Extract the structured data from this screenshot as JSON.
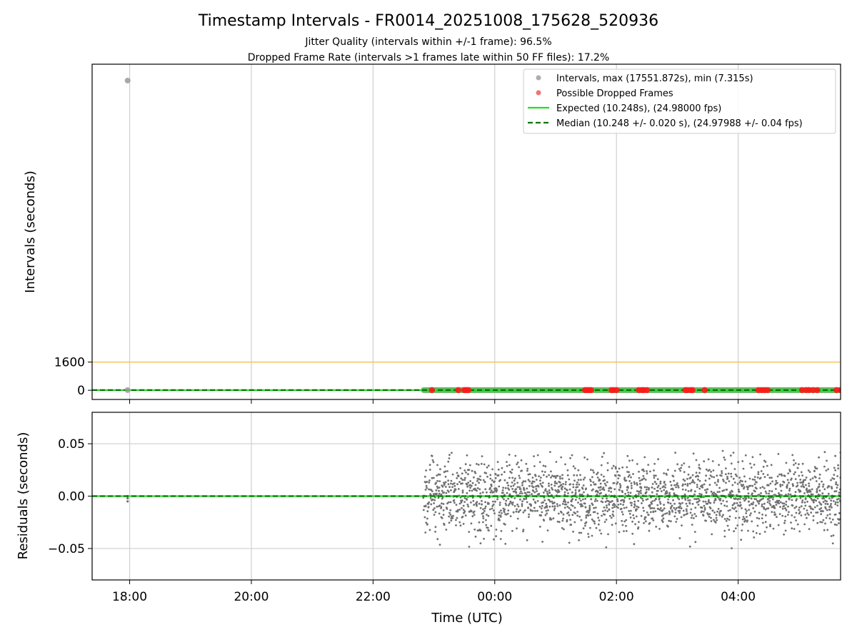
{
  "chart_data": [
    {
      "type": "scatter",
      "panel": "intervals",
      "title": "Timestamp Intervals - FR0014_20251008_175628_520936",
      "subtitle_lines": [
        "Jitter Quality (intervals within +/-1 frame): 96.5%",
        "Dropped Frame Rate (intervals >1 frames late within 50 FF files): 17.2%"
      ],
      "ylabel": "Intervals (seconds)",
      "yticks": [
        0,
        1600
      ],
      "ytick_labels": [
        "0",
        "1600"
      ],
      "ylim": [
        -520,
        18480
      ],
      "x_is_time": true,
      "xlim": [
        "17:23",
        "05:41"
      ],
      "xticks": [
        "18:00",
        "20:00",
        "22:00",
        "00:00",
        "02:00",
        "04:00"
      ],
      "threshold_line": {
        "value": 1600,
        "color": "#f5c242"
      },
      "expected_value": 10.248,
      "median_value": 10.248,
      "outlier_points": [
        {
          "time": "17:58",
          "value": 17551.872
        },
        {
          "time": "17:58",
          "value": 10.2
        }
      ],
      "continuous_segment": {
        "start": "22:50",
        "end": "05:41",
        "value": 10.25
      },
      "dropped_frame_times": [
        "22:58",
        "23:24",
        "23:30",
        "23:32",
        "23:34",
        "01:29",
        "01:31",
        "01:33",
        "01:35",
        "01:55",
        "01:57",
        "02:00",
        "02:22",
        "02:25",
        "02:27",
        "02:30",
        "03:08",
        "03:10",
        "03:13",
        "03:15",
        "03:27",
        "04:20",
        "04:23",
        "04:26",
        "04:29",
        "05:03",
        "05:07",
        "05:10",
        "05:14",
        "05:18",
        "05:37",
        "05:41"
      ],
      "legend": {
        "placement": "upper-right",
        "entries": [
          {
            "label": "Intervals, max (17551.872s), min (7.315s)",
            "kind": "marker",
            "color": "#999999"
          },
          {
            "label": "Possible Dropped Frames",
            "kind": "marker",
            "color": "#f05050"
          },
          {
            "label": "Expected (10.248s), (24.98000 fps)",
            "kind": "line",
            "color": "#22dd22"
          },
          {
            "label": "Median (10.248 +/- 0.020 s), (24.97988 +/- 0.04 fps)",
            "kind": "dashed",
            "color": "#007700"
          }
        ]
      },
      "grid_x": true
    },
    {
      "type": "scatter",
      "panel": "residuals",
      "xlabel": "Time (UTC)",
      "ylabel": "Residuals (seconds)",
      "ylim": [
        -0.08,
        0.08
      ],
      "yticks": [
        -0.05,
        0.0,
        0.05
      ],
      "ytick_labels": [
        "−0.05",
        "0.00",
        "0.05"
      ],
      "xlim": [
        "17:23",
        "05:41"
      ],
      "xticks": [
        "18:00",
        "20:00",
        "22:00",
        "00:00",
        "02:00",
        "04:00"
      ],
      "residual_cluster": {
        "start": "22:50",
        "end": "05:41",
        "std": 0.017,
        "range": [
          -0.05,
          0.045
        ],
        "point_color": "#707070"
      },
      "isolated_points": [
        {
          "time": "17:58",
          "value": -0.002
        },
        {
          "time": "17:58",
          "value": -0.005
        },
        {
          "time": "17:58",
          "value": 0.0
        }
      ],
      "expected_line": {
        "value": 0.0,
        "color": "#22dd22"
      },
      "median_line": {
        "value": 0.0,
        "color": "#007700"
      },
      "grid": true
    }
  ]
}
